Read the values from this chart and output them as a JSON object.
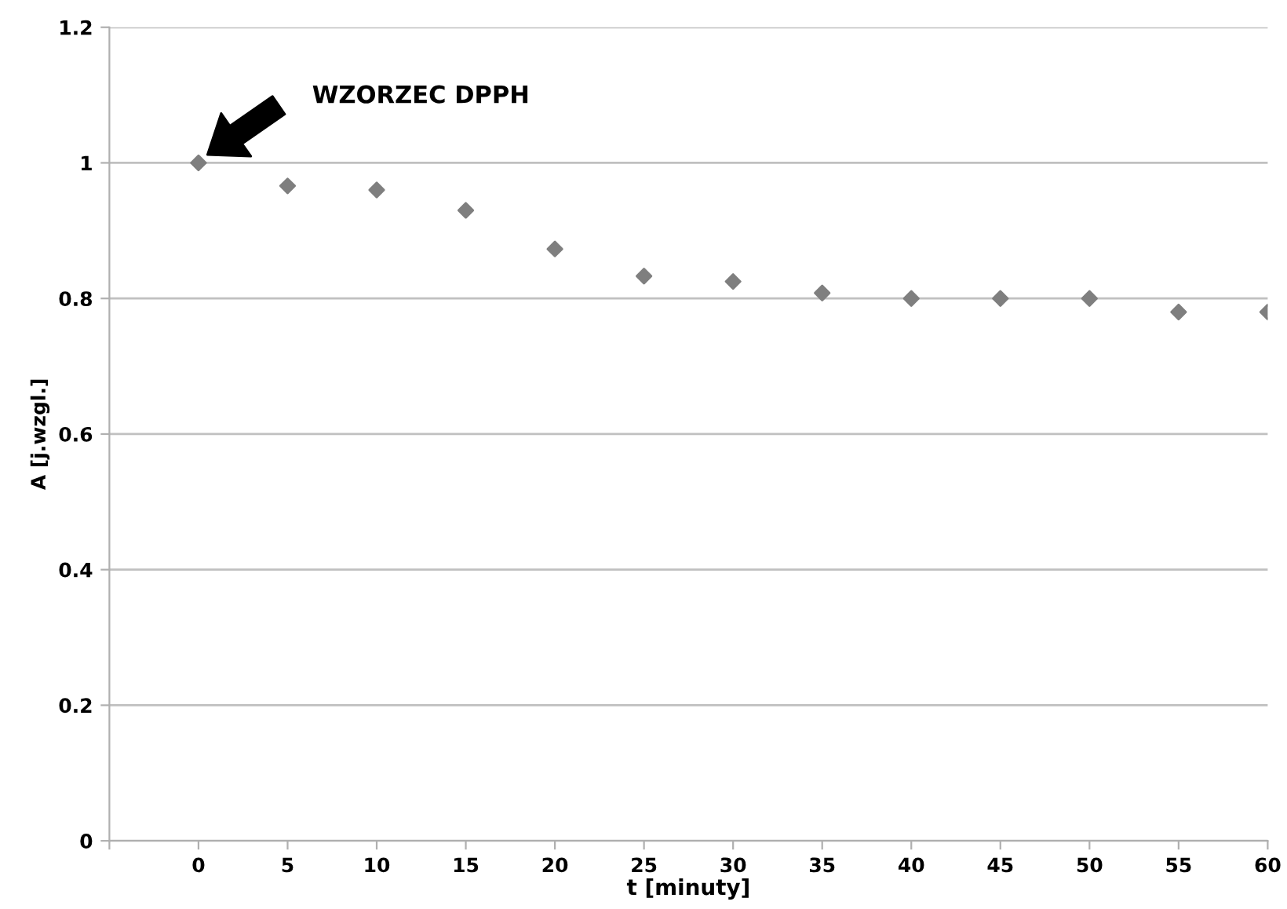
{
  "chart_data": {
    "type": "scatter",
    "xlabel": "t [minuty]",
    "ylabel": "A [j.wzgl.]",
    "x": [
      0,
      5,
      10,
      15,
      20,
      25,
      30,
      35,
      40,
      45,
      50,
      55,
      60
    ],
    "series": [
      {
        "color": "#7f7f7f",
        "values": [
          1.0,
          0.966,
          0.96,
          0.93,
          0.873,
          0.833,
          0.825,
          0.808,
          0.8,
          0.8,
          0.8,
          0.78,
          0.78
        ]
      }
    ],
    "annotations": [
      "WZORZEC DPPH"
    ],
    "xlim": [
      -5,
      60
    ],
    "xticks": [
      {
        "value": -5,
        "label": null
      },
      0,
      5,
      10,
      15,
      20,
      25,
      30,
      35,
      40,
      45,
      50,
      55,
      60
    ],
    "ylim": [
      0,
      1.2
    ],
    "yticks": [
      0,
      0.2,
      0.4,
      0.6,
      0.8,
      1,
      1.2
    ],
    "grid": "y",
    "marker": "diamond",
    "legend": false
  }
}
